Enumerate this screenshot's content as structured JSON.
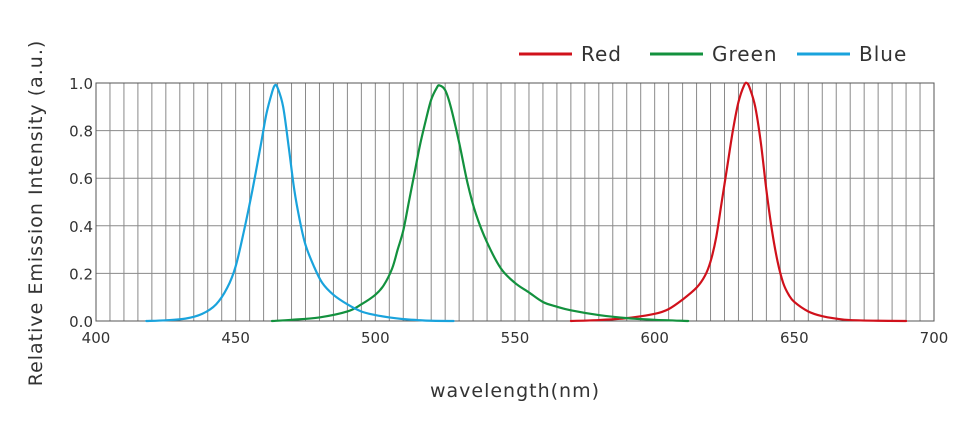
{
  "chart_data": {
    "type": "line",
    "xlabel": "wavelength(nm)",
    "ylabel": "Relative Emission Intensity (a.u.)",
    "xlim": [
      400,
      700
    ],
    "ylim": [
      0,
      1.0
    ],
    "x_ticks": [
      400,
      450,
      500,
      550,
      600,
      650,
      700
    ],
    "x_tick_labels": [
      "400",
      "450",
      "500",
      "550",
      "600",
      "650",
      "700"
    ],
    "y_ticks": [
      0,
      0.2,
      0.4,
      0.6,
      0.8,
      1.0
    ],
    "y_tick_labels": [
      "0.0",
      "0.2",
      "0.4",
      "0.6",
      "0.8",
      "1.0"
    ],
    "x_minor_step": 5,
    "grid": true,
    "legend_position": "top-right",
    "series": [
      {
        "name": "Red",
        "color": "#d0111b",
        "points": [
          [
            570,
            0.0
          ],
          [
            580,
            0.004
          ],
          [
            590,
            0.012
          ],
          [
            600,
            0.03
          ],
          [
            605,
            0.05
          ],
          [
            610,
            0.09
          ],
          [
            615,
            0.14
          ],
          [
            618,
            0.19
          ],
          [
            620,
            0.25
          ],
          [
            622,
            0.35
          ],
          [
            624,
            0.5
          ],
          [
            626,
            0.65
          ],
          [
            628,
            0.8
          ],
          [
            630,
            0.92
          ],
          [
            632,
            0.99
          ],
          [
            633,
            1.0
          ],
          [
            634,
            0.98
          ],
          [
            636,
            0.9
          ],
          [
            638,
            0.75
          ],
          [
            640,
            0.55
          ],
          [
            642,
            0.38
          ],
          [
            644,
            0.25
          ],
          [
            646,
            0.16
          ],
          [
            648,
            0.11
          ],
          [
            650,
            0.08
          ],
          [
            655,
            0.04
          ],
          [
            660,
            0.02
          ],
          [
            665,
            0.01
          ],
          [
            670,
            0.004
          ],
          [
            680,
            0.001
          ],
          [
            690,
            0.0
          ]
        ]
      },
      {
        "name": "Green",
        "color": "#13913e",
        "points": [
          [
            463,
            0.0
          ],
          [
            470,
            0.005
          ],
          [
            480,
            0.015
          ],
          [
            490,
            0.04
          ],
          [
            495,
            0.07
          ],
          [
            500,
            0.11
          ],
          [
            503,
            0.15
          ],
          [
            506,
            0.22
          ],
          [
            508,
            0.3
          ],
          [
            510,
            0.38
          ],
          [
            512,
            0.5
          ],
          [
            514,
            0.62
          ],
          [
            516,
            0.74
          ],
          [
            518,
            0.84
          ],
          [
            520,
            0.93
          ],
          [
            522,
            0.98
          ],
          [
            523,
            0.99
          ],
          [
            525,
            0.97
          ],
          [
            527,
            0.9
          ],
          [
            530,
            0.75
          ],
          [
            533,
            0.58
          ],
          [
            536,
            0.45
          ],
          [
            540,
            0.33
          ],
          [
            545,
            0.22
          ],
          [
            550,
            0.16
          ],
          [
            555,
            0.12
          ],
          [
            560,
            0.08
          ],
          [
            565,
            0.06
          ],
          [
            570,
            0.045
          ],
          [
            580,
            0.025
          ],
          [
            590,
            0.012
          ],
          [
            600,
            0.005
          ],
          [
            612,
            0.0
          ]
        ]
      },
      {
        "name": "Blue",
        "color": "#1aa3dc",
        "points": [
          [
            418,
            0.0
          ],
          [
            425,
            0.003
          ],
          [
            432,
            0.01
          ],
          [
            438,
            0.03
          ],
          [
            443,
            0.07
          ],
          [
            447,
            0.14
          ],
          [
            450,
            0.23
          ],
          [
            453,
            0.38
          ],
          [
            456,
            0.55
          ],
          [
            459,
            0.74
          ],
          [
            461,
            0.87
          ],
          [
            463,
            0.96
          ],
          [
            464,
            0.99
          ],
          [
            465,
            0.98
          ],
          [
            467,
            0.9
          ],
          [
            469,
            0.73
          ],
          [
            471,
            0.55
          ],
          [
            473,
            0.42
          ],
          [
            475,
            0.32
          ],
          [
            478,
            0.23
          ],
          [
            481,
            0.16
          ],
          [
            485,
            0.11
          ],
          [
            490,
            0.07
          ],
          [
            495,
            0.04
          ],
          [
            500,
            0.025
          ],
          [
            505,
            0.015
          ],
          [
            510,
            0.008
          ],
          [
            515,
            0.004
          ],
          [
            520,
            0.001
          ],
          [
            528,
            0.0
          ]
        ]
      }
    ]
  }
}
